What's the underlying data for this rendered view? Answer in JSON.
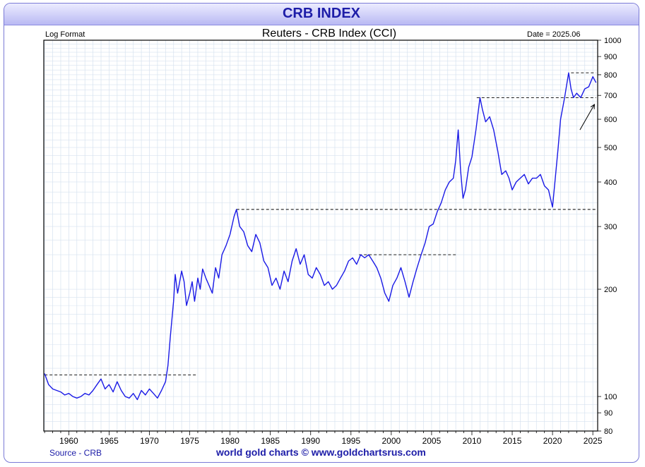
{
  "banner": {
    "title": "CRB INDEX"
  },
  "header": {
    "scale_note": "Log Format",
    "date_note": "Date = 2025.06"
  },
  "footer": {
    "source": "Source - CRB",
    "credit": "world gold charts © www.goldchartsrus.com"
  },
  "colors": {
    "line": "#1a1ae6",
    "grid": "#d6e2ef",
    "banner_text": "#1d1da8",
    "dashed": "#000000"
  },
  "chart_data": {
    "type": "line",
    "title": "Reuters - CRB Index (CCI)",
    "xlabel": "",
    "ylabel": "",
    "y_scale": "log",
    "xlim": [
      1956.9,
      2025.6
    ],
    "ylim": [
      80,
      1000
    ],
    "grid": true,
    "x_ticks": [
      1960,
      1965,
      1970,
      1975,
      1980,
      1985,
      1990,
      1995,
      2000,
      2005,
      2010,
      2015,
      2020,
      2025
    ],
    "y_ticks": [
      80,
      90,
      100,
      200,
      300,
      400,
      500,
      600,
      700,
      800,
      900,
      1000
    ],
    "series": [
      {
        "x": [
          1957.0,
          1957.5,
          1958.0,
          1958.5,
          1959.0,
          1959.5,
          1960.0,
          1960.5,
          1961.0,
          1961.5,
          1962.0,
          1962.5,
          1963.0,
          1963.5,
          1964.0,
          1964.5,
          1965.0,
          1965.5,
          1966.0,
          1966.5,
          1967.0,
          1967.5,
          1968.0,
          1968.5,
          1969.0,
          1969.5,
          1970.0,
          1970.5,
          1971.0,
          1971.5,
          1972.0,
          1972.3,
          1972.6,
          1973.0,
          1973.2,
          1973.5,
          1974.0,
          1974.3,
          1974.6,
          1975.0,
          1975.3,
          1975.6,
          1976.0,
          1976.3,
          1976.6,
          1977.0,
          1977.4,
          1977.8,
          1978.2,
          1978.6,
          1979.0,
          1979.5,
          1980.0,
          1980.5,
          1980.8,
          1981.2,
          1981.7,
          1982.2,
          1982.7,
          1983.2,
          1983.7,
          1984.2,
          1984.7,
          1985.2,
          1985.7,
          1986.2,
          1986.7,
          1987.2,
          1987.7,
          1988.2,
          1988.7,
          1989.2,
          1989.7,
          1990.2,
          1990.7,
          1991.2,
          1991.7,
          1992.2,
          1992.7,
          1993.2,
          1993.7,
          1994.2,
          1994.7,
          1995.2,
          1995.7,
          1996.2,
          1996.7,
          1997.2,
          1997.7,
          1998.2,
          1998.7,
          1999.2,
          1999.7,
          2000.2,
          2000.7,
          2001.2,
          2001.7,
          2002.2,
          2002.7,
          2003.2,
          2003.7,
          2004.2,
          2004.7,
          2005.2,
          2005.7,
          2006.2,
          2006.7,
          2007.2,
          2007.7,
          2008.0,
          2008.3,
          2008.6,
          2008.9,
          2009.2,
          2009.6,
          2010.0,
          2010.5,
          2011.0,
          2011.3,
          2011.7,
          2012.2,
          2012.7,
          2013.2,
          2013.7,
          2014.2,
          2014.6,
          2015.0,
          2015.5,
          2016.0,
          2016.5,
          2017.0,
          2017.5,
          2018.0,
          2018.5,
          2019.0,
          2019.5,
          2020.0,
          2020.3,
          2020.7,
          2021.0,
          2021.5,
          2022.0,
          2022.3,
          2022.6,
          2023.0,
          2023.5,
          2024.0,
          2024.5,
          2025.0,
          2025.4
        ],
        "values": [
          116,
          108,
          105,
          104,
          103,
          101,
          102,
          100,
          99,
          100,
          102,
          101,
          104,
          108,
          112,
          105,
          108,
          103,
          110,
          104,
          100,
          99,
          102,
          98,
          104,
          101,
          105,
          102,
          99,
          104,
          110,
          122,
          148,
          185,
          220,
          195,
          225,
          210,
          180,
          195,
          210,
          185,
          215,
          200,
          228,
          215,
          205,
          195,
          230,
          215,
          250,
          265,
          285,
          320,
          335,
          300,
          290,
          265,
          255,
          285,
          270,
          240,
          230,
          205,
          215,
          200,
          225,
          210,
          240,
          260,
          235,
          250,
          220,
          215,
          230,
          220,
          205,
          210,
          200,
          205,
          215,
          225,
          240,
          245,
          235,
          250,
          245,
          250,
          240,
          230,
          215,
          195,
          185,
          205,
          215,
          230,
          210,
          190,
          210,
          230,
          250,
          270,
          300,
          305,
          330,
          350,
          380,
          400,
          410,
          460,
          560,
          430,
          360,
          380,
          440,
          470,
          560,
          690,
          640,
          590,
          610,
          560,
          490,
          420,
          430,
          410,
          380,
          400,
          410,
          420,
          395,
          410,
          410,
          420,
          390,
          380,
          340,
          400,
          500,
          600,
          690,
          810,
          730,
          690,
          710,
          690,
          730,
          740,
          790,
          760
        ]
      }
    ],
    "reference_lines": [
      {
        "x_start": 1957.0,
        "x_end": 1976.0,
        "value": 115
      },
      {
        "x_start": 1980.8,
        "x_end": 2025.4,
        "value": 335
      },
      {
        "x_start": 1996.0,
        "x_end": 2008.0,
        "value": 250
      },
      {
        "x_start": 2010.6,
        "x_end": 2025.4,
        "value": 690
      },
      {
        "x_start": 2022.3,
        "x_end": 2025.4,
        "value": 810
      }
    ],
    "annotations": [
      {
        "type": "arrow",
        "x_start": 2023.4,
        "y_start": 560,
        "x_end": 2025.2,
        "y_end": 660
      }
    ]
  }
}
